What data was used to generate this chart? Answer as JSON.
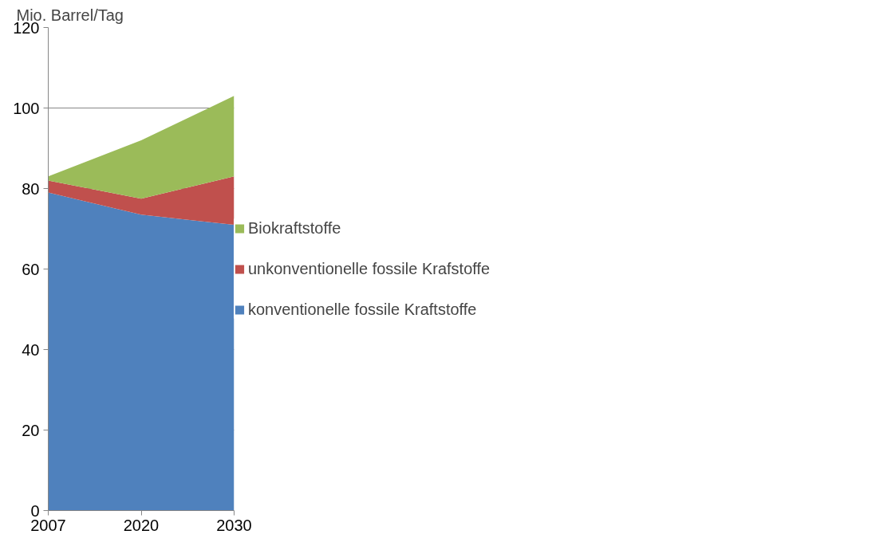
{
  "chart_data": {
    "type": "area",
    "stacked": true,
    "ylabel": "Mio. Barrel/Tag",
    "categories": [
      "2007",
      "2020",
      "2030"
    ],
    "series": [
      {
        "name": "konventionelle fossile Kraftstoffe",
        "color": "#4f81bd",
        "values": [
          79,
          73.5,
          71
        ]
      },
      {
        "name": "unkonventionelle fossile Krafstoffe",
        "color": "#c0504d",
        "values": [
          3,
          4,
          12
        ]
      },
      {
        "name": "Biokraftstoffe",
        "color": "#9bbb59",
        "values": [
          1,
          14.5,
          20
        ]
      }
    ],
    "ylim": [
      0,
      120
    ],
    "yticks": [
      0,
      20,
      40,
      60,
      80,
      100,
      120
    ],
    "grid": "y",
    "legend": "right"
  }
}
